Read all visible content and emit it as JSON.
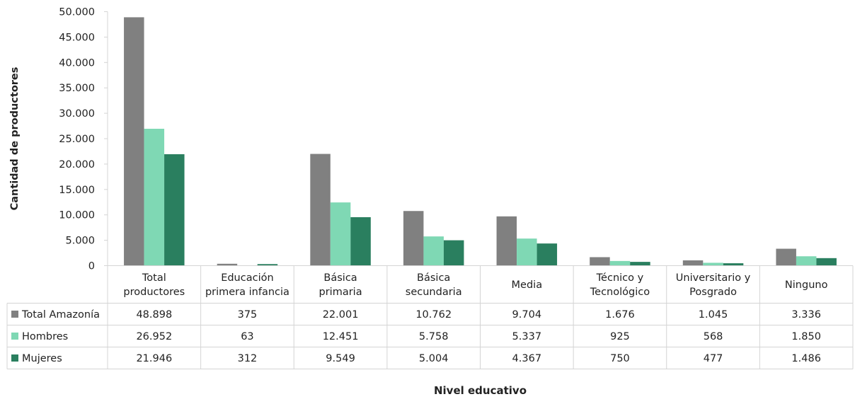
{
  "chart_data": {
    "type": "bar",
    "categories": [
      [
        "Total",
        "productores"
      ],
      [
        "Educación",
        "primera infancia"
      ],
      [
        "Básica",
        "primaria"
      ],
      [
        "Básica",
        "secundaria"
      ],
      [
        "Media"
      ],
      [
        "Técnico y",
        "Tecnológico"
      ],
      [
        "Universitario y",
        "Posgrado"
      ],
      [
        "Ninguno"
      ]
    ],
    "series": [
      {
        "name": "Total Amazonía",
        "color": "#808080",
        "values": [
          48898,
          375,
          22001,
          10762,
          9704,
          1676,
          1045,
          3336
        ],
        "labels": [
          "48.898",
          "375",
          "22.001",
          "10.762",
          "9.704",
          "1.676",
          "1.045",
          "3.336"
        ]
      },
      {
        "name": "Hombres",
        "color": "#7fd8b4",
        "values": [
          26952,
          63,
          12451,
          5758,
          5337,
          925,
          568,
          1850
        ],
        "labels": [
          "26.952",
          "63",
          "12.451",
          "5.758",
          "5.337",
          "925",
          "568",
          "1.850"
        ]
      },
      {
        "name": "Mujeres",
        "color": "#2a7f5f",
        "values": [
          21946,
          312,
          9549,
          5004,
          4367,
          750,
          477,
          1486
        ],
        "labels": [
          "21.946",
          "312",
          "9.549",
          "5.004",
          "4.367",
          "750",
          "477",
          "1.486"
        ]
      }
    ],
    "yticks": [
      0,
      5000,
      10000,
      15000,
      20000,
      25000,
      30000,
      35000,
      40000,
      45000,
      50000
    ],
    "ytick_labels": [
      "0",
      "5.000",
      "10.000",
      "15.000",
      "20.000",
      "25.000",
      "30.000",
      "35.000",
      "40.000",
      "45.000",
      "50.000"
    ],
    "ylim": [
      0,
      50000
    ],
    "ylabel": "Cantidad de productores",
    "xlabel": "Nivel educativo",
    "legend": "data-table",
    "grid": false
  }
}
